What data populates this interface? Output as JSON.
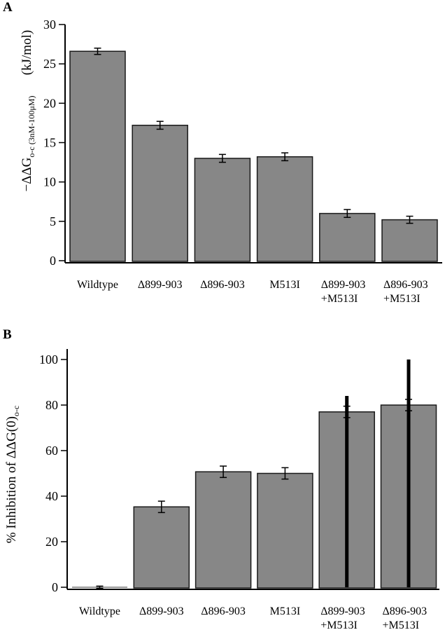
{
  "chart_data": [
    {
      "panel": "A",
      "type": "bar",
      "title": "",
      "xlabel": "",
      "ylabel": "-ΔΔG o-c (3nM-100μM) (kJ/mol)",
      "ylabel_parts": {
        "main": "−ΔΔG",
        "subscript": "o-c (3nM-100μM)",
        "units": "(kJ/mol)"
      },
      "ylim": [
        0,
        30
      ],
      "yticks": [
        0,
        5,
        10,
        15,
        20,
        25,
        30
      ],
      "grid": false,
      "categories": [
        [
          "Wildtype"
        ],
        [
          "Δ899-903"
        ],
        [
          "Δ896-903"
        ],
        [
          "M513I"
        ],
        [
          "Δ899-903",
          "+M513I"
        ],
        [
          "Δ896-903",
          "+M513I"
        ]
      ],
      "values": [
        26.6,
        17.2,
        13.0,
        13.2,
        6.0,
        5.2
      ],
      "errors": [
        0.4,
        0.5,
        0.5,
        0.5,
        0.5,
        0.45
      ],
      "extra_bars": []
    },
    {
      "panel": "B",
      "type": "bar",
      "title": "",
      "xlabel": "",
      "ylabel": "% Inhibition of ΔΔG(0) o-c",
      "ylabel_parts": {
        "main": "% Inhibition of ΔΔG(0)",
        "subscript": "o-c",
        "units": ""
      },
      "ylim": [
        0,
        100
      ],
      "yticks": [
        0,
        20,
        40,
        60,
        80,
        100
      ],
      "grid": false,
      "categories": [
        [
          "Wildtype"
        ],
        [
          "Δ899-903"
        ],
        [
          "Δ896-903"
        ],
        [
          "M513I"
        ],
        [
          "Δ899-903",
          "+M513I"
        ],
        [
          "Δ896-903",
          "+M513I"
        ]
      ],
      "values": [
        0,
        35.3,
        50.7,
        50.0,
        77.0,
        80.0
      ],
      "errors": [
        0.5,
        2.5,
        2.5,
        2.5,
        2.5,
        2.5
      ],
      "extra_bars": [
        null,
        null,
        null,
        null,
        84,
        100
      ]
    }
  ]
}
